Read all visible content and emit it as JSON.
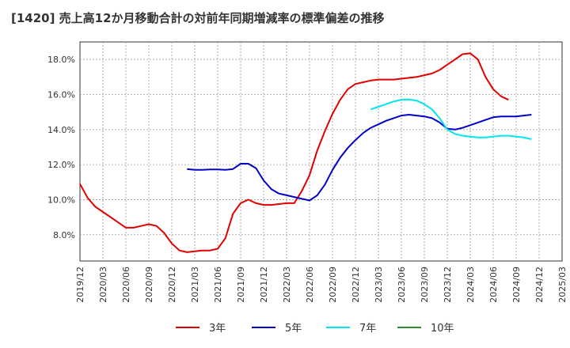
{
  "chart_data": {
    "type": "line",
    "title": "[1420]  売上高12か月移動合計の対前年同期増減率の標準偏差の推移",
    "xlabel": "",
    "ylabel": "",
    "ylim": [
      6.5,
      19.0
    ],
    "yticks": [
      8.0,
      10.0,
      12.0,
      14.0,
      16.0,
      18.0
    ],
    "ytick_labels": [
      "8.0%",
      "10.0%",
      "12.0%",
      "14.0%",
      "16.0%",
      "18.0%"
    ],
    "xlim": [
      "2019-12",
      "2025-03"
    ],
    "xtick_labels": [
      "2019/12",
      "2020/03",
      "2020/06",
      "2020/09",
      "2020/12",
      "2021/03",
      "2021/06",
      "2021/09",
      "2021/12",
      "2022/03",
      "2022/06",
      "2022/09",
      "2022/12",
      "2023/03",
      "2023/06",
      "2023/09",
      "2023/12",
      "2024/03",
      "2024/06",
      "2024/09",
      "2024/12",
      "2025/03"
    ],
    "grid": true,
    "legend_placement": "bottom",
    "series": [
      {
        "name": "3年",
        "color": "#e00000",
        "start": "2019-12",
        "values": [
          10.9,
          10.1,
          9.6,
          9.3,
          9.0,
          8.7,
          8.4,
          8.4,
          8.5,
          8.6,
          8.5,
          8.1,
          7.5,
          7.1,
          7.0,
          7.05,
          7.1,
          7.1,
          7.2,
          7.8,
          9.2,
          9.8,
          10.0,
          9.8,
          9.7,
          9.7,
          9.75,
          9.8,
          9.8,
          10.5,
          11.4,
          12.8,
          13.9,
          14.9,
          15.7,
          16.3,
          16.6,
          16.7,
          16.8,
          16.85,
          16.85,
          16.85,
          16.9,
          16.95,
          17.0,
          17.1,
          17.2,
          17.4,
          17.7,
          18.0,
          18.3,
          18.35,
          18.0,
          17.0,
          16.3,
          15.9,
          15.7
        ]
      },
      {
        "name": "5年",
        "color": "#0000c8",
        "start": "2021-02",
        "values": [
          11.75,
          11.7,
          11.7,
          11.72,
          11.72,
          11.7,
          11.75,
          12.05,
          12.05,
          11.8,
          11.1,
          10.6,
          10.35,
          10.25,
          10.15,
          10.05,
          9.95,
          10.25,
          10.85,
          11.7,
          12.4,
          12.95,
          13.4,
          13.8,
          14.1,
          14.3,
          14.5,
          14.65,
          14.8,
          14.85,
          14.8,
          14.75,
          14.65,
          14.4,
          14.05,
          14.0,
          14.1,
          14.25,
          14.4,
          14.55,
          14.7,
          14.75,
          14.75,
          14.75,
          14.8,
          14.85
        ]
      },
      {
        "name": "7年",
        "color": "#00e5ee",
        "start": "2023-02",
        "values": [
          15.15,
          15.3,
          15.45,
          15.6,
          15.7,
          15.72,
          15.65,
          15.45,
          15.15,
          14.65,
          14.0,
          13.75,
          13.65,
          13.6,
          13.55,
          13.55,
          13.6,
          13.65,
          13.65,
          13.6,
          13.55,
          13.45
        ]
      },
      {
        "name": "10年",
        "color": "#2e8b2e",
        "start": "2025-03",
        "values": []
      }
    ]
  }
}
